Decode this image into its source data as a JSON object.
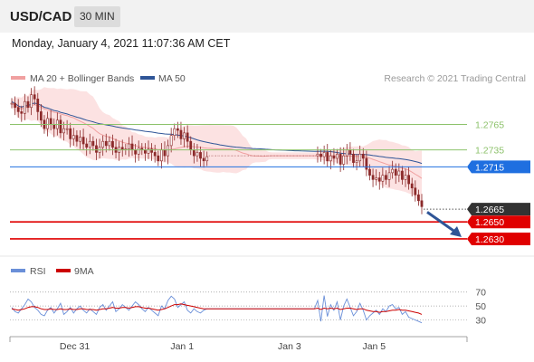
{
  "header": {
    "symbol": "USD/CAD",
    "timeframe": "30 MIN",
    "timestamp": "Monday, January 4, 2021 11:07:36 AM CET"
  },
  "legend": {
    "ma20_bb": "MA 20 + Bollinger Bands",
    "ma50": "MA 50",
    "credit": "Research © 2021 Trading Central",
    "rsi": "RSI",
    "rsi_ma": "9MA"
  },
  "colors": {
    "candle_up": "#8b2a2a",
    "candle_down": "#8b2a2a",
    "ma20": "#f0a0a0",
    "bollinger_fill": "#fbd8d8",
    "ma50": "#2f5597",
    "green_level": "#8dc26b",
    "blue_level": "#1f6fe0",
    "red_level": "#e00000",
    "current_price": "#333333",
    "arrow": "#2f5597",
    "rsi_line": "#6a8fd8",
    "rsi_ma_line": "#cc0000"
  },
  "chart_data": [
    {
      "type": "candlestick",
      "x_ticks": [
        "Dec 31",
        "Jan 1",
        "Jan 3",
        "Jan 5"
      ],
      "ylim": [
        1.2615,
        1.2805
      ],
      "levels": [
        {
          "value": 1.2765,
          "label": "1.2765",
          "kind": "resistance"
        },
        {
          "value": 1.2735,
          "label": "1.2735",
          "kind": "resistance"
        },
        {
          "value": 1.2715,
          "label": "1.2715",
          "kind": "pivot"
        },
        {
          "value": 1.2665,
          "label": "1.2665",
          "kind": "current"
        },
        {
          "value": 1.265,
          "label": "1.2650",
          "kind": "support"
        },
        {
          "value": 1.263,
          "label": "1.2630",
          "kind": "support"
        }
      ],
      "closes": [
        1.279,
        1.2785,
        1.278,
        1.2778,
        1.2792,
        1.2785,
        1.28,
        1.2795,
        1.278,
        1.277,
        1.276,
        1.2772,
        1.2765,
        1.276,
        1.277,
        1.2755,
        1.276,
        1.276,
        1.2748,
        1.2752,
        1.2745,
        1.275,
        1.2742,
        1.2738,
        1.2745,
        1.274,
        1.2732,
        1.2738,
        1.2745,
        1.274,
        1.2745,
        1.2738,
        1.2732,
        1.2738,
        1.2735,
        1.2736,
        1.2742,
        1.2735,
        1.273,
        1.2737,
        1.2735,
        1.2731,
        1.2736,
        1.2732,
        1.2728,
        1.2722,
        1.2735,
        1.2728,
        1.274,
        1.2752,
        1.276,
        1.2758,
        1.2748,
        1.2755,
        1.2745,
        1.2735,
        1.2728,
        1.2732,
        1.2725,
        1.2722,
        1.2727,
        1.2728,
        1.2728,
        1.2728,
        1.2728,
        1.2728,
        1.2728,
        1.2728,
        1.2728,
        1.2728,
        1.2728,
        1.2728,
        1.2728,
        1.2728,
        1.2728,
        1.2728,
        1.2728,
        1.2728,
        1.2728,
        1.2728,
        1.2728,
        1.2728,
        1.2728,
        1.2728,
        1.2728,
        1.2728,
        1.2728,
        1.2728,
        1.2728,
        1.2728,
        1.2728,
        1.2728,
        1.2728,
        1.2728,
        1.273,
        1.2727,
        1.2732,
        1.2722,
        1.2728,
        1.2725,
        1.273,
        1.2718,
        1.2728,
        1.2735,
        1.273,
        1.272,
        1.2722,
        1.273,
        1.2725,
        1.2712,
        1.2705,
        1.27,
        1.2702,
        1.2698,
        1.2705,
        1.27,
        1.2708,
        1.2712,
        1.2705,
        1.271,
        1.27,
        1.2705,
        1.2695,
        1.269,
        1.2682,
        1.2675,
        1.2668
      ]
    },
    {
      "type": "line",
      "name": "RSI",
      "yticks": [
        30,
        50,
        70
      ],
      "ylim": [
        10,
        80
      ],
      "rsi": [
        48,
        42,
        40,
        46,
        52,
        60,
        56,
        48,
        44,
        38,
        36,
        44,
        48,
        40,
        46,
        54,
        38,
        42,
        48,
        40,
        46,
        50,
        44,
        40,
        46,
        42,
        38,
        48,
        52,
        44,
        50,
        56,
        42,
        46,
        52,
        48,
        44,
        50,
        56,
        52,
        46,
        42,
        48,
        44,
        40,
        36,
        50,
        46,
        58,
        64,
        60,
        48,
        52,
        56,
        44,
        40,
        46,
        42,
        40,
        44,
        46,
        46,
        46,
        46,
        46,
        46,
        46,
        46,
        46,
        46,
        46,
        46,
        46,
        46,
        46,
        46,
        46,
        46,
        46,
        46,
        46,
        46,
        46,
        46,
        46,
        46,
        46,
        46,
        46,
        46,
        46,
        46,
        46,
        46,
        58,
        28,
        65,
        35,
        52,
        44,
        56,
        30,
        50,
        60,
        48,
        36,
        42,
        54,
        44,
        30,
        36,
        40,
        44,
        38,
        46,
        42,
        50,
        52,
        46,
        48,
        38,
        42,
        34,
        32,
        30,
        28,
        26
      ],
      "ma9": [
        46,
        45,
        44,
        45,
        46,
        48,
        49,
        49,
        48,
        46,
        45,
        45,
        46,
        45,
        45,
        46,
        45,
        45,
        46,
        45,
        45,
        46,
        46,
        45,
        45,
        45,
        44,
        45,
        46,
        46,
        47,
        48,
        47,
        47,
        48,
        48,
        47,
        48,
        49,
        49,
        48,
        47,
        47,
        46,
        45,
        44,
        45,
        46,
        48,
        50,
        52,
        52,
        53,
        52,
        51,
        50,
        49,
        48,
        47,
        46,
        46,
        46,
        46,
        46,
        46,
        46,
        46,
        46,
        46,
        46,
        46,
        46,
        46,
        46,
        46,
        46,
        46,
        46,
        46,
        46,
        46,
        46,
        46,
        46,
        46,
        46,
        46,
        46,
        46,
        46,
        46,
        46,
        46,
        46,
        47,
        45,
        47,
        46,
        47,
        46,
        47,
        45,
        46,
        47,
        47,
        46,
        45,
        46,
        46,
        44,
        43,
        42,
        42,
        41,
        42,
        42,
        43,
        44,
        44,
        45,
        44,
        44,
        43,
        42,
        41,
        40,
        38
      ]
    }
  ]
}
